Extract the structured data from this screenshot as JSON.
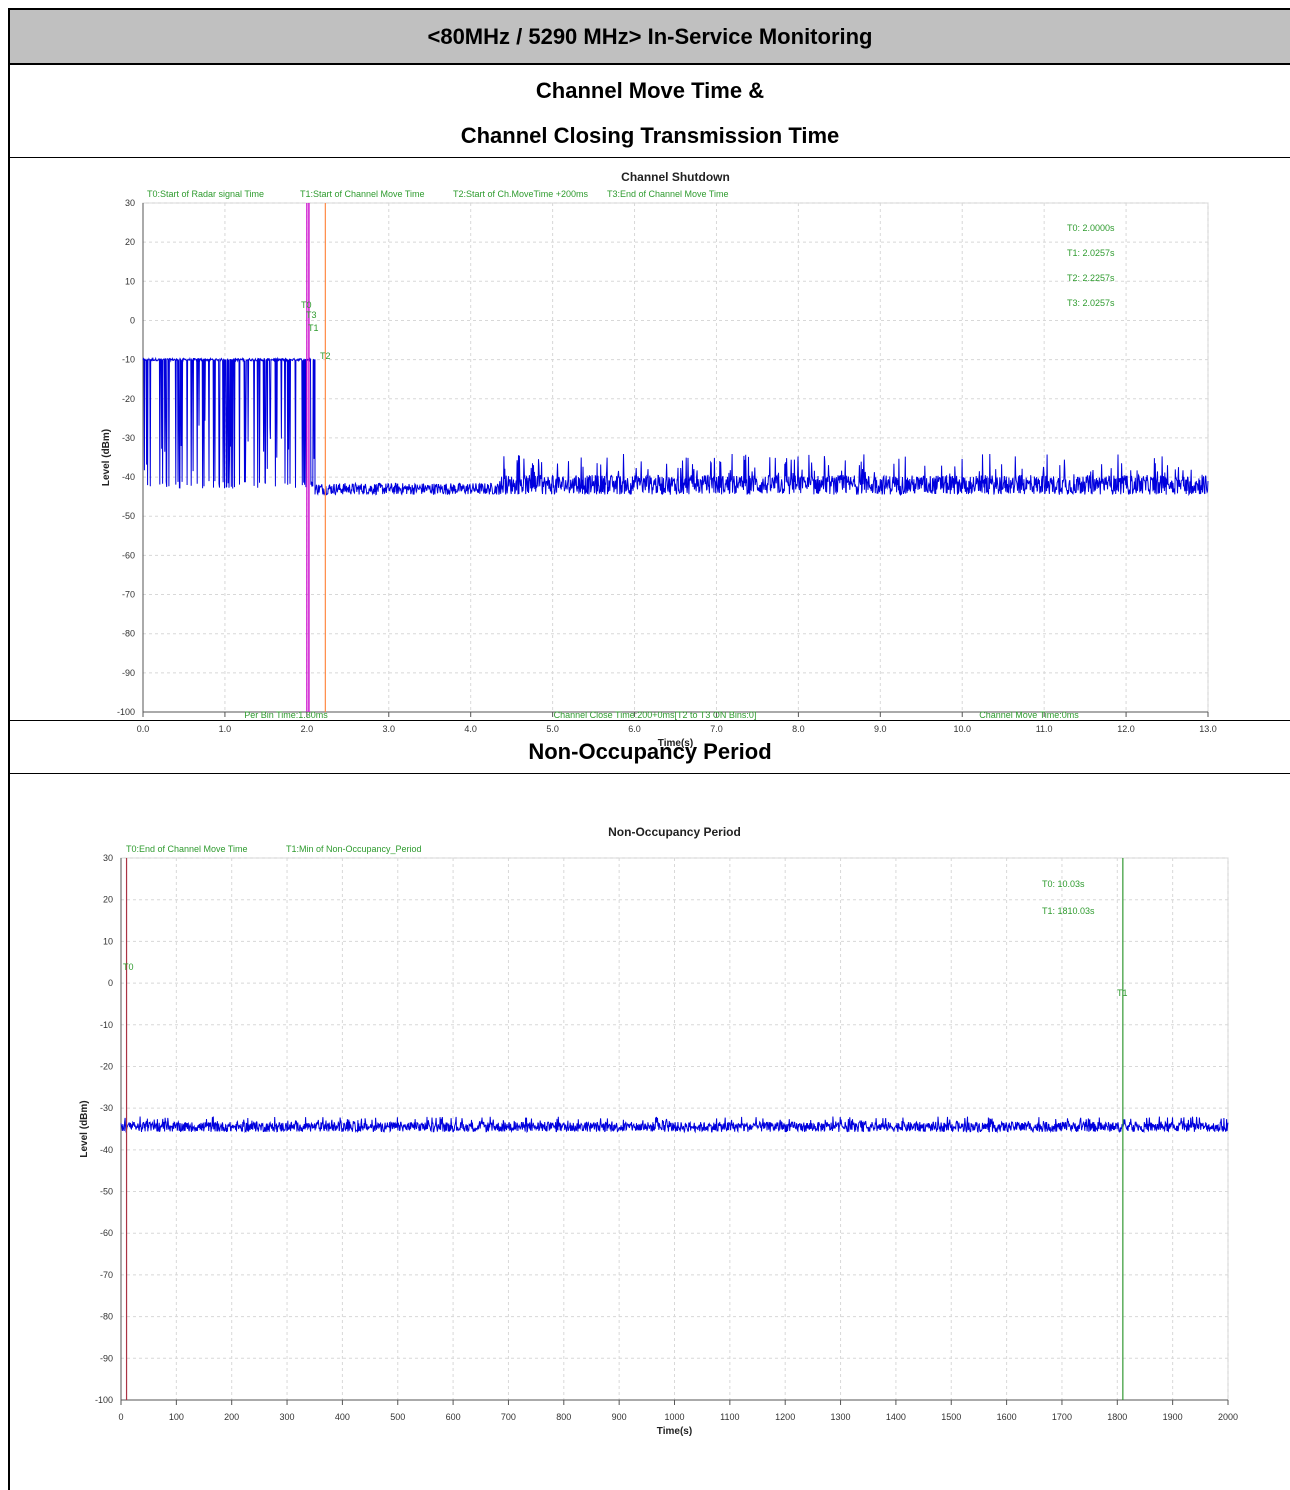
{
  "header": {
    "title": "<80MHz / 5290 MHz> In-Service Monitoring",
    "section1_line1": "Channel Move Time &",
    "section1_line2": "Channel Closing Transmission Time",
    "section2_title": "Non-Occupancy Period"
  },
  "chart_data": [
    {
      "type": "line",
      "title": "Channel Shutdown",
      "xlabel": "Time(s)",
      "ylabel": "Level (dBm)",
      "xlim": [
        0,
        13
      ],
      "ylim": [
        -100,
        30
      ],
      "x_ticks": [
        "0.0",
        "1.0",
        "2.0",
        "3.0",
        "4.0",
        "5.0",
        "6.0",
        "7.0",
        "8.0",
        "9.0",
        "10.0",
        "11.0",
        "12.0",
        "13.0"
      ],
      "y_ticks": [
        "30",
        "20",
        "10",
        "0",
        "-10",
        "-20",
        "-30",
        "-40",
        "-50",
        "-60",
        "-70",
        "-80",
        "-90",
        "-100"
      ],
      "grid": true,
      "top_labels": [
        "T0:Start of Radar signal Time",
        "T1:Start of Channel Move Time",
        "T2:Start of Ch.MoveTime +200ms",
        "T3:End of Channel Move Time"
      ],
      "bottom_labels": [
        "Per Bin Time:1.30ms",
        "Channel Close Time:200+0ms[T2 to T3 ON Bins:0]",
        "Channel Move Time:0ms"
      ],
      "marker_readouts": [
        "T0: 2.0000s",
        "T1: 2.0257s",
        "T2: 2.2257s",
        "T3: 2.0257s"
      ],
      "markers": [
        {
          "name": "T0",
          "x": 2.0,
          "color": "#cc00cc"
        },
        {
          "name": "T1",
          "x": 2.0257,
          "color": "#cc00cc"
        },
        {
          "name": "T2",
          "x": 2.2257,
          "color": "#ff8844"
        },
        {
          "name": "T3",
          "x": 2.0257,
          "color": "#cc00cc"
        }
      ],
      "marker_tags": [
        "T0",
        "T3",
        "T1",
        "T2"
      ],
      "series": [
        {
          "color": "#0000dd",
          "segments": [
            {
              "x_start": 0.0,
              "x_end": 2.1,
              "level": -10,
              "drop_to": -43,
              "pattern": "pulsed"
            },
            {
              "x_start": 2.1,
              "x_end": 4.35,
              "level": -43,
              "noise": 1.5
            },
            {
              "x_start": 4.35,
              "x_end": 13.0,
              "level": -42,
              "noise": 2.5,
              "spikes_to": -34
            }
          ]
        }
      ]
    },
    {
      "type": "line",
      "title": "Non-Occupancy Period",
      "xlabel": "Time(s)",
      "ylabel": "Level (dBm)",
      "xlim": [
        0,
        2000
      ],
      "ylim": [
        -100,
        30
      ],
      "x_ticks": [
        "0",
        "100",
        "200",
        "300",
        "400",
        "500",
        "600",
        "700",
        "800",
        "900",
        "1000",
        "1100",
        "1200",
        "1300",
        "1400",
        "1500",
        "1600",
        "1700",
        "1800",
        "1900",
        "2000"
      ],
      "y_ticks": [
        "30",
        "20",
        "10",
        "0",
        "-10",
        "-20",
        "-30",
        "-40",
        "-50",
        "-60",
        "-70",
        "-80",
        "-90",
        "-100"
      ],
      "grid": true,
      "top_labels": [
        "T0:End of Channel Move Time",
        "T1:Min of Non-Occupancy_Period"
      ],
      "marker_readouts": [
        "T0: 10.03s",
        "T1: 1810.03s"
      ],
      "markers": [
        {
          "name": "T0",
          "x": 10.03,
          "color": "#aa3344"
        },
        {
          "name": "T1",
          "x": 1810.03,
          "color": "#339933"
        }
      ],
      "marker_tags": [
        "T0",
        "T1"
      ],
      "series": [
        {
          "color": "#0000dd",
          "segments": [
            {
              "x_start": 0,
              "x_end": 2000,
              "level": -34.5,
              "noise": 1.2,
              "spikes_to": -32
            }
          ]
        }
      ]
    }
  ]
}
